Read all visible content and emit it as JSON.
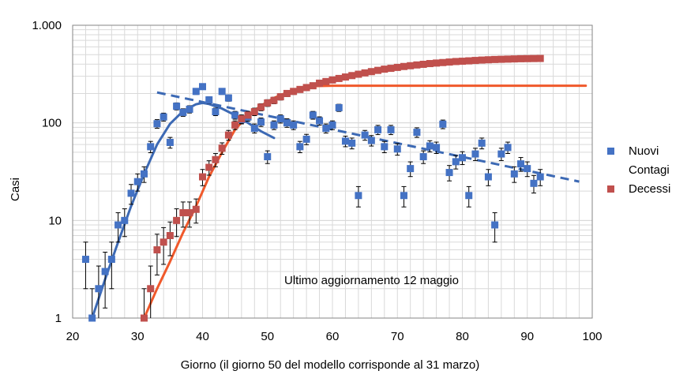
{
  "chart_data": {
    "type": "scatter",
    "xlabel": "Giorno (il giorno 50 del modello corrisponde al 31 marzo)",
    "ylabel": "Casi",
    "xlim": [
      20,
      100
    ],
    "ylim": [
      1,
      1000
    ],
    "y_scale": "log",
    "grid": true,
    "legend_position": "right",
    "x_ticks": [
      20,
      30,
      40,
      50,
      60,
      70,
      80,
      90,
      100
    ],
    "x_tick_labels": [
      "20",
      "30",
      "40",
      "50",
      "60",
      "70",
      "80",
      "90",
      "100"
    ],
    "y_ticks": [
      1,
      10,
      100,
      1000
    ],
    "y_tick_labels": [
      "1",
      "10",
      "100",
      "1.000"
    ],
    "annotation": "Ultimo aggiornamento 12 maggio",
    "series": [
      {
        "name": "Nuovi Contagi",
        "legend_lines": [
          "Nuovi",
          "Contagi"
        ],
        "color": "#4472C4",
        "marker": "square",
        "error_bars": true,
        "points": [
          [
            22,
            4
          ],
          [
            23,
            1
          ],
          [
            24,
            2
          ],
          [
            25,
            3
          ],
          [
            26,
            4
          ],
          [
            27,
            9
          ],
          [
            28,
            10
          ],
          [
            29,
            19
          ],
          [
            30,
            25
          ],
          [
            31,
            30
          ],
          [
            32,
            57
          ],
          [
            33,
            98
          ],
          [
            34,
            115
          ],
          [
            35,
            63
          ],
          [
            36,
            148
          ],
          [
            37,
            128
          ],
          [
            38,
            138
          ],
          [
            39,
            210
          ],
          [
            40,
            235
          ],
          [
            41,
            172
          ],
          [
            42,
            130
          ],
          [
            43,
            210
          ],
          [
            44,
            180
          ],
          [
            45,
            120
          ],
          [
            46,
            108
          ],
          [
            47,
            115
          ],
          [
            48,
            88
          ],
          [
            49,
            102
          ],
          [
            50,
            45
          ],
          [
            51,
            95
          ],
          [
            52,
            110
          ],
          [
            53,
            100
          ],
          [
            54,
            95
          ],
          [
            55,
            57
          ],
          [
            56,
            68
          ],
          [
            57,
            120
          ],
          [
            58,
            105
          ],
          [
            59,
            88
          ],
          [
            60,
            95
          ],
          [
            61,
            143
          ],
          [
            62,
            65
          ],
          [
            63,
            62
          ],
          [
            64,
            18
          ],
          [
            65,
            75
          ],
          [
            66,
            66
          ],
          [
            67,
            85
          ],
          [
            68,
            57
          ],
          [
            69,
            85
          ],
          [
            70,
            54
          ],
          [
            71,
            18
          ],
          [
            72,
            34
          ],
          [
            73,
            80
          ],
          [
            74,
            45
          ],
          [
            75,
            58
          ],
          [
            76,
            56
          ],
          [
            77,
            97
          ],
          [
            78,
            31
          ],
          [
            79,
            40
          ],
          [
            80,
            44
          ],
          [
            81,
            18
          ],
          [
            82,
            48
          ],
          [
            83,
            62
          ],
          [
            84,
            28
          ],
          [
            85,
            9
          ],
          [
            86,
            48
          ],
          [
            87,
            56
          ],
          [
            88,
            30
          ],
          [
            89,
            38
          ],
          [
            90,
            34
          ],
          [
            91,
            24
          ],
          [
            92,
            28
          ]
        ]
      },
      {
        "name": "Decessi",
        "legend_lines": [
          "Decessi"
        ],
        "color": "#C0504D",
        "marker": "square",
        "error_bars": true,
        "points": [
          [
            31,
            1
          ],
          [
            32,
            2
          ],
          [
            33,
            5
          ],
          [
            34,
            6
          ],
          [
            35,
            7
          ],
          [
            36,
            10
          ],
          [
            37,
            12
          ],
          [
            38,
            12
          ],
          [
            39,
            13
          ],
          [
            40,
            28
          ],
          [
            41,
            35
          ],
          [
            42,
            42
          ],
          [
            43,
            55
          ],
          [
            44,
            75
          ],
          [
            45,
            95
          ],
          [
            46,
            110
          ],
          [
            47,
            120
          ],
          [
            48,
            130
          ],
          [
            49,
            145
          ],
          [
            50,
            160
          ],
          [
            51,
            170
          ],
          [
            52,
            185
          ],
          [
            53,
            200
          ],
          [
            54,
            210
          ],
          [
            55,
            220
          ],
          [
            56,
            230
          ],
          [
            57,
            240
          ],
          [
            58,
            255
          ],
          [
            59,
            265
          ],
          [
            60,
            275
          ],
          [
            61,
            285
          ],
          [
            62,
            295
          ],
          [
            63,
            305
          ],
          [
            64,
            315
          ],
          [
            65,
            325
          ],
          [
            66,
            335
          ],
          [
            67,
            345
          ],
          [
            68,
            355
          ],
          [
            69,
            362
          ],
          [
            70,
            370
          ],
          [
            71,
            378
          ],
          [
            72,
            385
          ],
          [
            73,
            392
          ],
          [
            74,
            398
          ],
          [
            75,
            405
          ],
          [
            76,
            410
          ],
          [
            77,
            415
          ],
          [
            78,
            420
          ],
          [
            79,
            425
          ],
          [
            80,
            428
          ],
          [
            81,
            432
          ],
          [
            82,
            436
          ],
          [
            83,
            440
          ],
          [
            84,
            443
          ],
          [
            85,
            446
          ],
          [
            86,
            448
          ],
          [
            87,
            450
          ],
          [
            88,
            452
          ],
          [
            89,
            454
          ],
          [
            90,
            455
          ],
          [
            91,
            456
          ],
          [
            92,
            457
          ]
        ]
      }
    ],
    "fit_curves": [
      {
        "series": "Nuovi Contagi",
        "color": "#3C69B4",
        "style": "solid",
        "points": [
          [
            23,
            1
          ],
          [
            25,
            2.5
          ],
          [
            27,
            6
          ],
          [
            29,
            14
          ],
          [
            31,
            30
          ],
          [
            33,
            60
          ],
          [
            35,
            98
          ],
          [
            37,
            132
          ],
          [
            39,
            155
          ],
          [
            40,
            160
          ],
          [
            41,
            156
          ],
          [
            43,
            140
          ],
          [
            45,
            120
          ],
          [
            47,
            100
          ],
          [
            49,
            82
          ],
          [
            51,
            70
          ]
        ]
      },
      {
        "series": "Nuovi Contagi",
        "color": "#3C69B4",
        "style": "dashed",
        "points": [
          [
            33,
            205
          ],
          [
            98,
            25
          ]
        ]
      },
      {
        "series": "Decessi",
        "color": "#F0592B",
        "style": "solid",
        "points": [
          [
            31,
            1
          ],
          [
            33,
            2
          ],
          [
            35,
            3.8
          ],
          [
            37,
            7.5
          ],
          [
            39,
            14
          ],
          [
            41,
            28
          ],
          [
            43,
            50
          ],
          [
            45,
            85
          ],
          [
            47,
            120
          ],
          [
            49,
            150
          ],
          [
            51,
            180
          ],
          [
            53,
            205
          ],
          [
            55,
            225
          ],
          [
            57,
            238
          ],
          [
            60,
            240
          ],
          [
            70,
            240
          ],
          [
            80,
            240
          ],
          [
            90,
            240
          ],
          [
            99,
            240
          ]
        ]
      }
    ]
  }
}
